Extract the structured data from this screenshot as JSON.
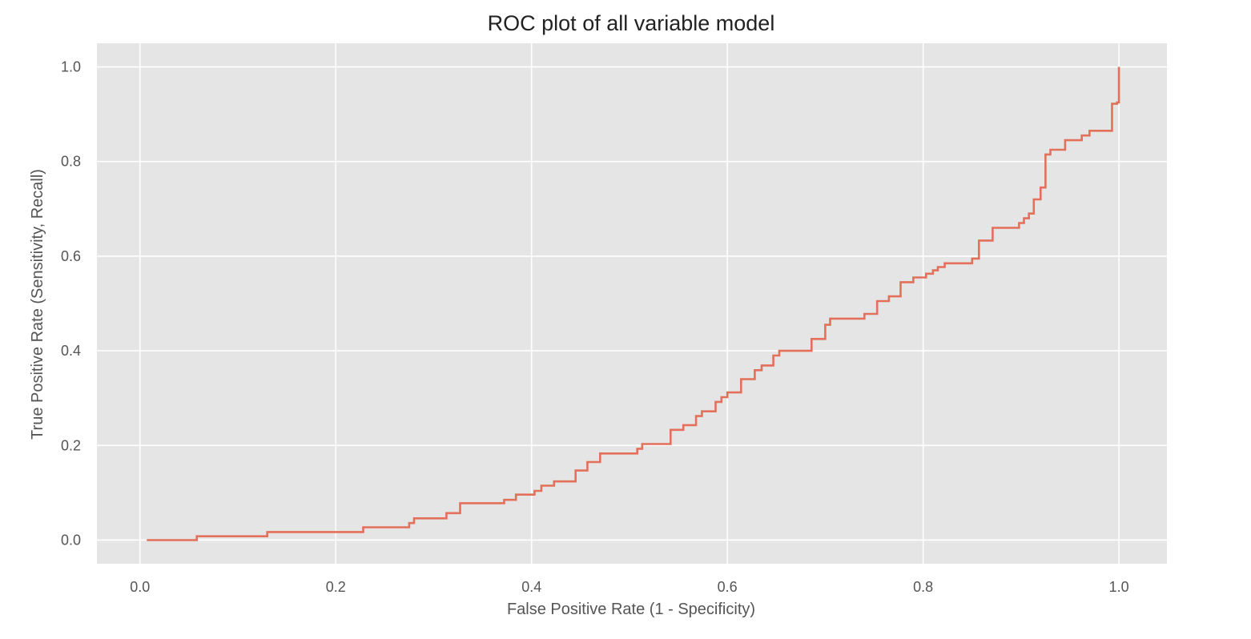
{
  "chart_data": {
    "type": "line",
    "title": "ROC plot of all variable model",
    "xlabel": "False Positive Rate (1 - Specificity)",
    "ylabel": "True Positive Rate (Sensitivity, Recall)",
    "xlim": [
      -0.044,
      1.049
    ],
    "ylim": [
      -0.05,
      1.05
    ],
    "xticks": [
      0.0,
      0.2,
      0.4,
      0.6,
      0.8,
      1.0
    ],
    "yticks": [
      0.0,
      0.2,
      0.4,
      0.6,
      0.8,
      1.0
    ],
    "xtick_labels": [
      "0.0",
      "0.2",
      "0.4",
      "0.6",
      "0.8",
      "1.0"
    ],
    "ytick_labels": [
      "0.0",
      "0.2",
      "0.4",
      "0.6",
      "0.8",
      "1.0"
    ],
    "grid": true,
    "background_color": "#e5e5e5",
    "series": [
      {
        "color": "#e2705a",
        "drawstyle": "steps-post",
        "x": [
          0.007,
          0.058,
          0.13,
          0.228,
          0.275,
          0.28,
          0.313,
          0.327,
          0.372,
          0.384,
          0.403,
          0.41,
          0.423,
          0.445,
          0.457,
          0.47,
          0.508,
          0.513,
          0.542,
          0.555,
          0.568,
          0.574,
          0.588,
          0.594,
          0.6,
          0.614,
          0.628,
          0.635,
          0.647,
          0.653,
          0.686,
          0.7,
          0.705,
          0.74,
          0.753,
          0.765,
          0.777,
          0.79,
          0.803,
          0.81,
          0.815,
          0.822,
          0.85,
          0.857,
          0.871,
          0.898,
          0.903,
          0.908,
          0.913,
          0.92,
          0.925,
          0.93,
          0.935,
          0.945,
          0.962,
          0.97,
          0.993,
          0.998,
          1.0
        ],
        "y": [
          0.0,
          0.008,
          0.017,
          0.027,
          0.036,
          0.046,
          0.057,
          0.078,
          0.085,
          0.096,
          0.104,
          0.115,
          0.124,
          0.147,
          0.165,
          0.183,
          0.193,
          0.203,
          0.233,
          0.243,
          0.262,
          0.272,
          0.292,
          0.302,
          0.312,
          0.34,
          0.359,
          0.369,
          0.39,
          0.4,
          0.425,
          0.455,
          0.468,
          0.478,
          0.505,
          0.515,
          0.545,
          0.555,
          0.563,
          0.57,
          0.577,
          0.585,
          0.595,
          0.633,
          0.66,
          0.67,
          0.68,
          0.69,
          0.72,
          0.745,
          0.815,
          0.825,
          0.825,
          0.845,
          0.855,
          0.865,
          0.922,
          0.925,
          1.0
        ]
      }
    ]
  }
}
